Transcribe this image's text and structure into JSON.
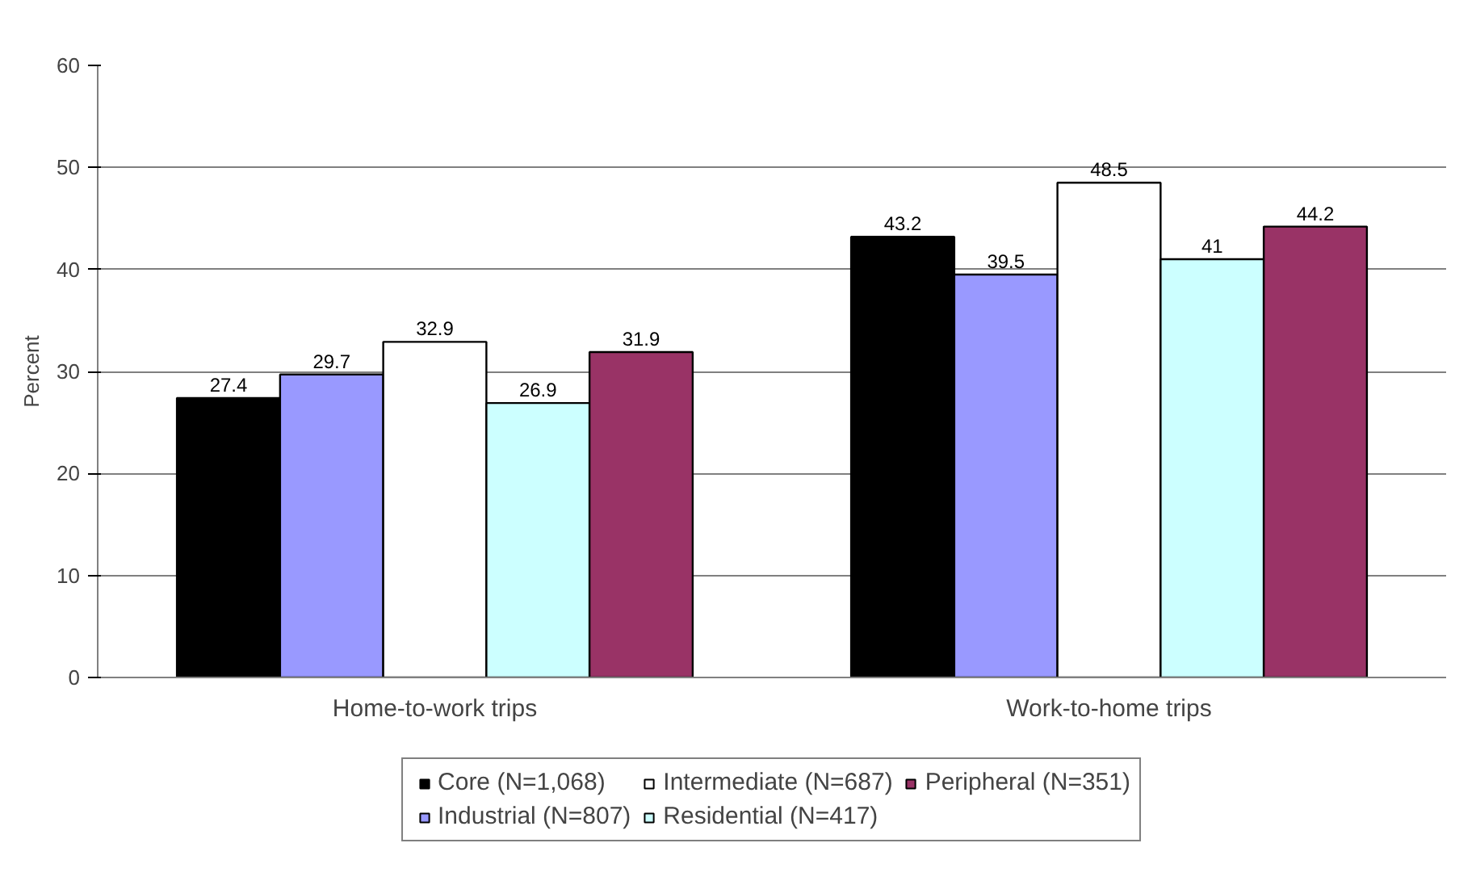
{
  "chart_data": {
    "type": "bar",
    "ylabel": "Percent",
    "categories": [
      "Home-to-work trips",
      "Work-to-home trips"
    ],
    "series": [
      {
        "name": "Core (N=1,068)",
        "color": "#000000",
        "values": [
          27.4,
          43.2
        ]
      },
      {
        "name": "Industrial (N=807)",
        "color": "#9999ff",
        "values": [
          29.7,
          39.5
        ]
      },
      {
        "name": "Intermediate (N=687)",
        "color": "#ffffff",
        "values": [
          32.9,
          48.5
        ]
      },
      {
        "name": "Residential (N=417)",
        "color": "#ccffff",
        "values": [
          26.9,
          41
        ]
      },
      {
        "name": "Peripheral (N=351)",
        "color": "#993366",
        "values": [
          31.9,
          44.2
        ]
      }
    ],
    "ylim": [
      0,
      60
    ],
    "yticks": [
      0,
      10,
      20,
      30,
      40,
      50,
      60
    ],
    "grid": "y",
    "legend": "bottom",
    "data_labels": true
  }
}
